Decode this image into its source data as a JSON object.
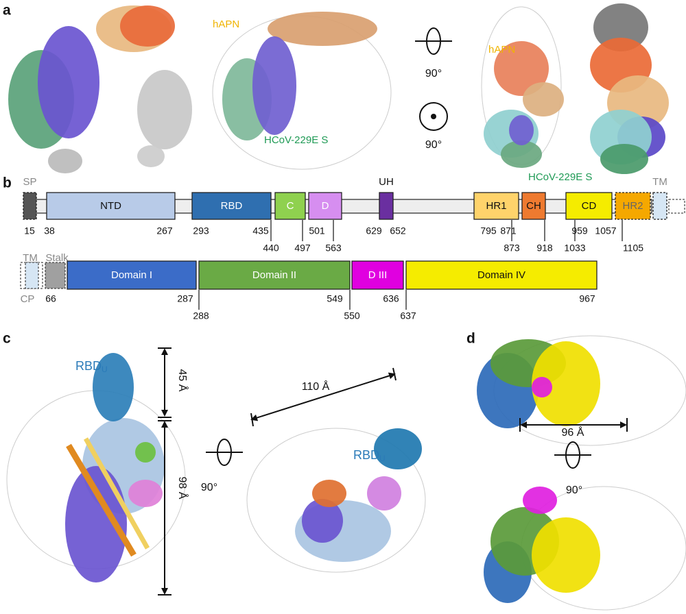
{
  "panel_a": {
    "label": "a",
    "annotations": [
      "hAPN",
      "HCoV-229E S",
      "90°",
      "90°",
      "hAPN",
      "HCoV-229E S"
    ]
  },
  "panel_b": {
    "label": "b",
    "spike": {
      "domains": [
        "SP",
        "NTD",
        "RBD",
        "C",
        "D",
        "UH",
        "HR1",
        "CH",
        "CD",
        "HR2",
        "TM"
      ],
      "residues": [
        15,
        38,
        267,
        293,
        435,
        440,
        497,
        501,
        563,
        629,
        652,
        795,
        871,
        873,
        918,
        959,
        1033,
        1057,
        1105
      ]
    },
    "receptor": {
      "domains": [
        "TM",
        "Stalk",
        "CP",
        "Domain I",
        "Domain II",
        "D III",
        "Domain IV"
      ],
      "residues": [
        66,
        287,
        288,
        549,
        550,
        636,
        637,
        967
      ]
    }
  },
  "panel_c": {
    "label": "c",
    "rbd_label": {
      "text": "RBD",
      "subscript": "U"
    },
    "annotations": [
      "45 Å",
      "98 Å",
      "90°",
      "110 Å"
    ]
  },
  "panel_d": {
    "label": "d",
    "annotations": [
      "96 Å",
      "90°"
    ]
  }
}
